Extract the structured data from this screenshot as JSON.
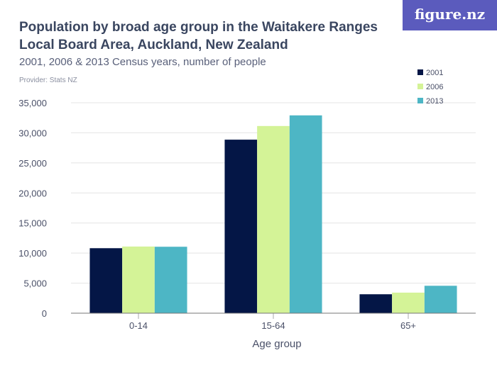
{
  "logo": "figure.nz",
  "title": "Population by broad age group in the Waitakere Ranges Local Board Area, Auckland, New Zealand",
  "subtitle": "2001, 2006 & 2013 Census years, number of people",
  "provider": "Provider: Stats NZ",
  "chart_data": {
    "type": "bar",
    "title": "Population by broad age group in the Waitakere Ranges Local Board Area, Auckland, New Zealand",
    "subtitle": "2001, 2006 & 2013 Census years, number of people",
    "xlabel": "Age group",
    "ylabel": "",
    "categories": [
      "0-14",
      "15-64",
      "65+"
    ],
    "series": [
      {
        "name": "2001",
        "color": "#041646",
        "values": [
          10810,
          28860,
          3150
        ]
      },
      {
        "name": "2006",
        "color": "#d4f397",
        "values": [
          11085,
          31130,
          3420
        ]
      },
      {
        "name": "2013",
        "color": "#4db6c5",
        "values": [
          11050,
          32900,
          4560
        ]
      }
    ],
    "ylim": [
      0,
      35000
    ],
    "yticks": [
      0,
      5000,
      10000,
      15000,
      20000,
      25000,
      30000,
      35000
    ],
    "ytick_labels": [
      "0",
      "5,000",
      "10,000",
      "15,000",
      "20,000",
      "25,000",
      "30,000",
      "35,000"
    ],
    "grid": true,
    "legend": "top-right"
  }
}
